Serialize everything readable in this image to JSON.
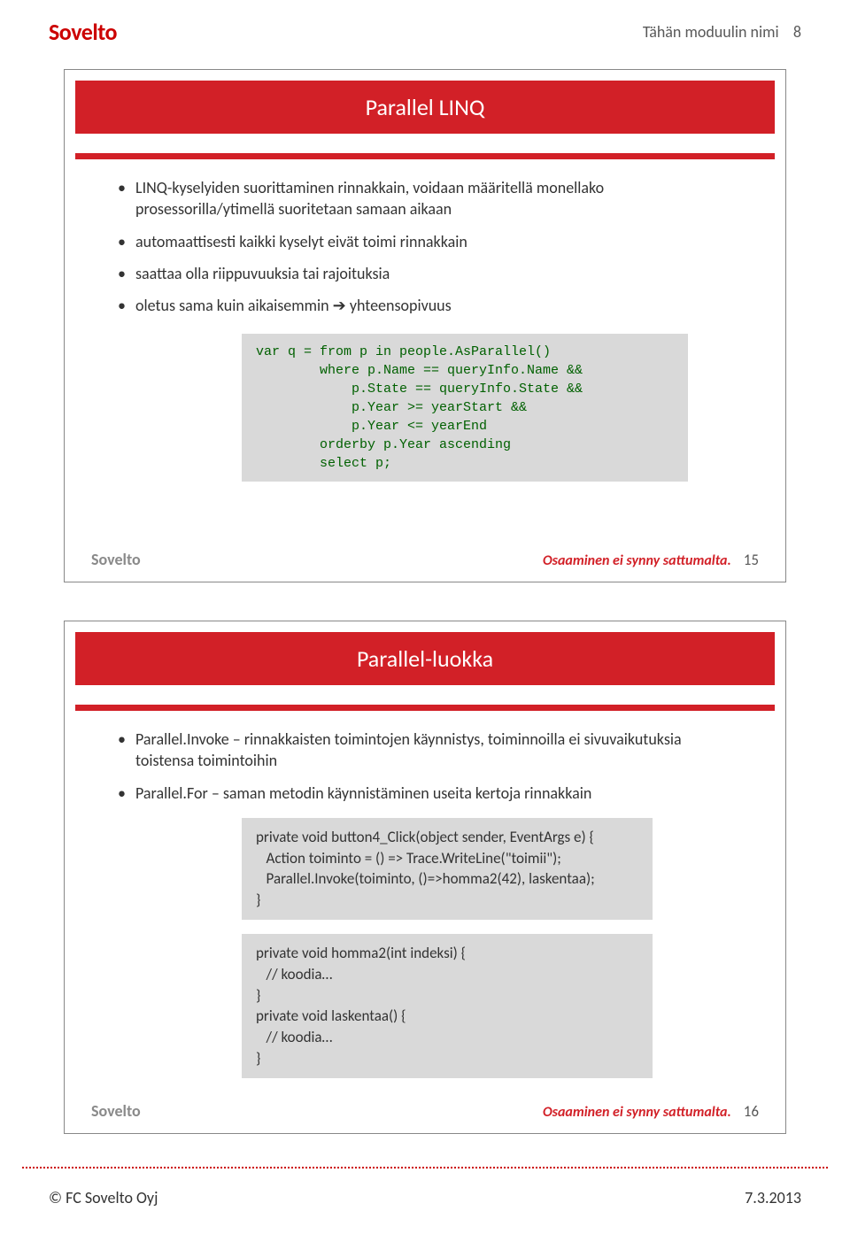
{
  "header": {
    "logo": "Sovelto",
    "module": "Tähän moduulin nimi",
    "page": "8"
  },
  "slide1": {
    "title": "Parallel LINQ",
    "bullets": [
      "LINQ-kyselyiden suorittaminen rinnakkain, voidaan määritellä monellako prosessorilla/ytimellä suoritetaan samaan aikaan",
      "automaattisesti kaikki kyselyt eivät toimi rinnakkain",
      "saattaa olla riippuvuuksia tai rajoituksia",
      "oletus sama kuin aikaisemmin ➔ yhteensopivuus"
    ],
    "code": "var q = from p in people.AsParallel()\n        where p.Name == queryInfo.Name &&\n            p.State == queryInfo.State &&\n            p.Year >= yearStart &&\n            p.Year <= yearEnd\n        orderby p.Year ascending\n        select p;",
    "footer_logo": "Sovelto",
    "slogan": "Osaaminen ei synny sattumalta.",
    "num": "15"
  },
  "slide2": {
    "title": "Parallel-luokka",
    "bullets": [
      "Parallel.Invoke – rinnakkaisten toimintojen käynnistys, toiminnoilla ei sivuvaikutuksia toistensa toimintoihin",
      "Parallel.For – saman metodin käynnistäminen useita kertoja rinnakkain"
    ],
    "code1": "private void button4_Click(object sender, EventArgs e) {\n   Action toiminto = () => Trace.WriteLine(\"toimii\");\n   Parallel.Invoke(toiminto, ()=>homma2(42), laskentaa);\n}",
    "code2": "private void homma2(int indeksi) {\n   // koodia…\n}\nprivate void laskentaa() {\n   // koodia…\n}",
    "footer_logo": "Sovelto",
    "slogan": "Osaaminen ei synny sattumalta.",
    "num": "16"
  },
  "footer": {
    "copyright": "© FC Sovelto Oyj",
    "date": "7.3.2013"
  }
}
